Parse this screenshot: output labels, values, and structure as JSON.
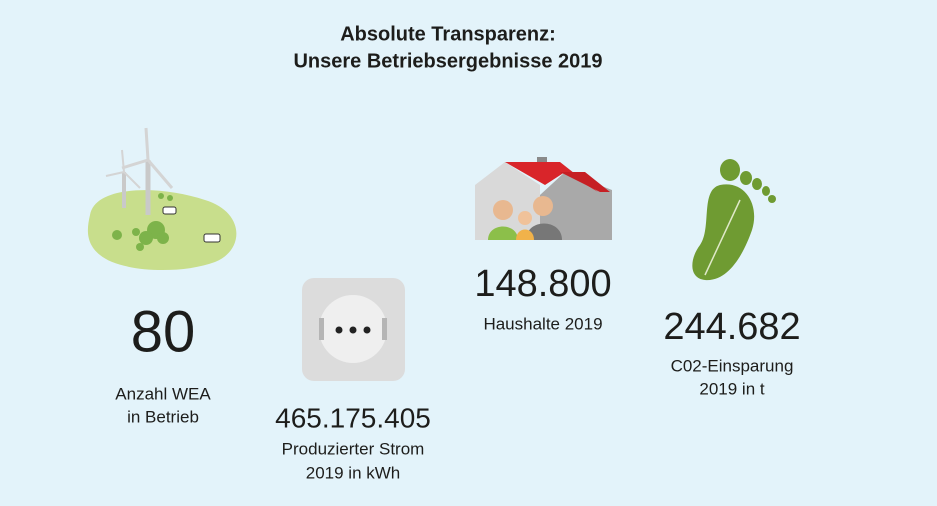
{
  "header": {
    "title_lines": [
      "Absolute Transparenz:",
      "Unsere Betriebsergebnisse 2019"
    ]
  },
  "stats": [
    {
      "value": "80",
      "label_lines": [
        "Anzahl WEA",
        "in Betrieb"
      ]
    },
    {
      "value": "465.175.405",
      "label_lines": [
        "Produzierter Strom",
        "2019 in kWh"
      ]
    },
    {
      "value": "148.800",
      "label_lines": [
        "Haushalte 2019"
      ]
    },
    {
      "value": "244.682",
      "label_lines": [
        "C02-Einsparung",
        "2019 in t"
      ]
    }
  ]
}
